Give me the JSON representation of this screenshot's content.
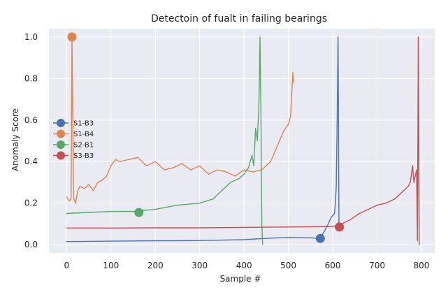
{
  "chart_data": {
    "type": "line",
    "title": "Detectoin of fualt in failing bearings",
    "xlabel": "Sample #",
    "ylabel": "Anomaly Score",
    "xlim": [
      -40,
      830
    ],
    "ylim": [
      -0.04,
      1.04
    ],
    "xticks": [
      0,
      100,
      200,
      300,
      400,
      500,
      600,
      700,
      800
    ],
    "yticks": [
      0.0,
      0.2,
      0.4,
      0.6,
      0.8,
      1.0
    ],
    "xtick_labels": [
      "0",
      "100",
      "200",
      "300",
      "400",
      "500",
      "600",
      "700",
      "800"
    ],
    "ytick_labels": [
      "0.0",
      "0.2",
      "0.4",
      "0.6",
      "0.8",
      "1.0"
    ],
    "grid": true,
    "legend_position": "center-left",
    "background": "#eaeaf2",
    "series": [
      {
        "name": "S1-B3",
        "color": "#4c72b0",
        "x": [
          0,
          50,
          100,
          150,
          200,
          250,
          300,
          350,
          400,
          430,
          450,
          500,
          550,
          570,
          580,
          590,
          596,
          600,
          604,
          606,
          608,
          610,
          612,
          614
        ],
        "y": [
          0.015,
          0.016,
          0.017,
          0.018,
          0.019,
          0.019,
          0.02,
          0.022,
          0.024,
          0.028,
          0.03,
          0.035,
          0.033,
          0.03,
          0.06,
          0.1,
          0.13,
          0.14,
          0.15,
          0.2,
          0.28,
          0.6,
          1.0,
          0.09
        ],
        "marker": {
          "x": 572,
          "y": 0.03
        }
      },
      {
        "name": "S1-B4",
        "color": "#dd8452",
        "x": [
          0,
          6,
          10,
          12,
          14,
          16,
          20,
          25,
          30,
          40,
          50,
          60,
          70,
          80,
          90,
          100,
          110,
          120,
          140,
          160,
          180,
          200,
          220,
          240,
          260,
          280,
          300,
          320,
          340,
          360,
          380,
          400,
          420,
          440,
          450,
          460,
          470,
          480,
          490,
          500,
          505,
          510,
          512
        ],
        "y": [
          0.23,
          0.21,
          0.22,
          1.0,
          0.55,
          0.22,
          0.2,
          0.26,
          0.28,
          0.27,
          0.29,
          0.26,
          0.3,
          0.31,
          0.33,
          0.38,
          0.41,
          0.4,
          0.41,
          0.42,
          0.38,
          0.4,
          0.36,
          0.37,
          0.39,
          0.36,
          0.38,
          0.34,
          0.36,
          0.35,
          0.33,
          0.36,
          0.35,
          0.36,
          0.38,
          0.4,
          0.45,
          0.5,
          0.55,
          0.58,
          0.62,
          0.83,
          0.78
        ],
        "marker": {
          "x": 12,
          "y": 1.0
        }
      },
      {
        "name": "S2-B1",
        "color": "#55a868",
        "x": [
          0,
          50,
          100,
          150,
          200,
          250,
          300,
          330,
          350,
          370,
          390,
          400,
          410,
          418,
          422,
          426,
          430,
          434,
          436,
          438,
          440,
          442
        ],
        "y": [
          0.15,
          0.155,
          0.16,
          0.16,
          0.17,
          0.19,
          0.2,
          0.22,
          0.26,
          0.3,
          0.32,
          0.34,
          0.37,
          0.43,
          0.38,
          0.56,
          0.5,
          0.7,
          1.0,
          0.65,
          0.1,
          0.0
        ],
        "marker": {
          "x": 163,
          "y": 0.155
        }
      },
      {
        "name": "S3-B3",
        "color": "#c44e52",
        "x": [
          0,
          100,
          200,
          300,
          400,
          500,
          550,
          600,
          610,
          620,
          640,
          660,
          680,
          700,
          720,
          740,
          760,
          770,
          775,
          780,
          783,
          786,
          789,
          791,
          793,
          795
        ],
        "y": [
          0.08,
          0.08,
          0.081,
          0.081,
          0.083,
          0.085,
          0.086,
          0.088,
          0.09,
          0.1,
          0.12,
          0.15,
          0.17,
          0.19,
          0.2,
          0.22,
          0.26,
          0.28,
          0.3,
          0.38,
          0.3,
          0.33,
          0.36,
          0.02,
          1.0,
          0.0
        ],
        "marker": {
          "x": 615,
          "y": 0.085
        }
      }
    ]
  }
}
